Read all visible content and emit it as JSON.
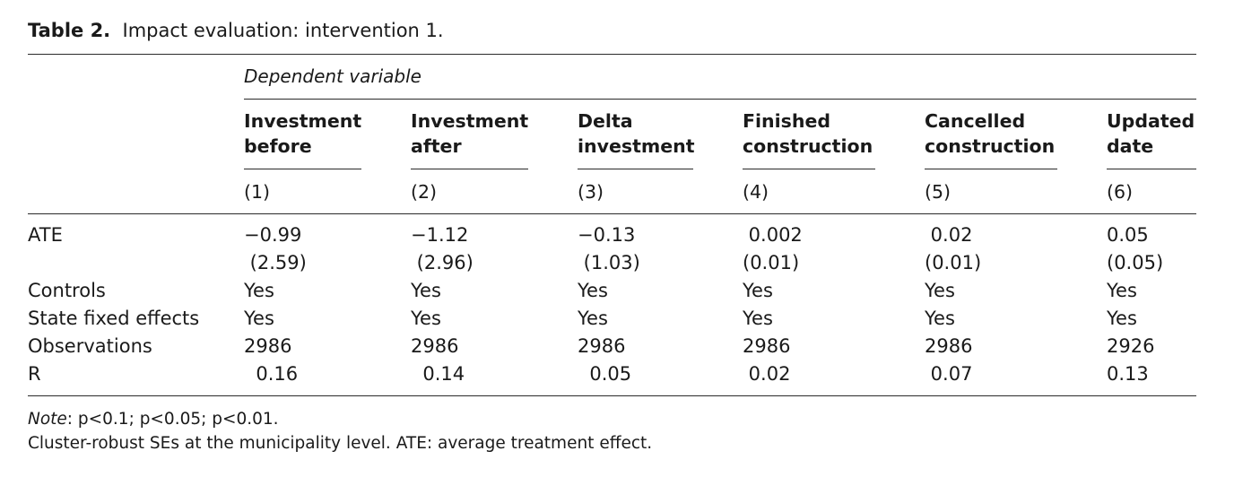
{
  "table": {
    "label": "Table 2.",
    "caption": "Impact evaluation: intervention 1.",
    "dependent_label": "Dependent variable",
    "columns": [
      {
        "line1": "Investment",
        "line2": "before",
        "num": "(1)"
      },
      {
        "line1": "Investment",
        "line2": "after",
        "num": "(2)"
      },
      {
        "line1": "Delta",
        "line2": "investment",
        "num": "(3)"
      },
      {
        "line1": "Finished",
        "line2": "construction",
        "num": "(4)"
      },
      {
        "line1": "Cancelled",
        "line2": "construction",
        "num": "(5)"
      },
      {
        "line1": "Updated",
        "line2": "date",
        "num": "(6)"
      }
    ],
    "rows": [
      {
        "label": "ATE",
        "values": [
          "−0.99",
          "−1.12",
          "−0.13",
          " 0.002",
          " 0.02",
          "0.05"
        ]
      },
      {
        "label": "",
        "values": [
          " (2.59)",
          " (2.96)",
          " (1.03)",
          "(0.01)",
          "(0.01)",
          "(0.05)"
        ]
      },
      {
        "label": "Controls",
        "values": [
          "Yes",
          "Yes",
          "Yes",
          "Yes",
          "Yes",
          "Yes"
        ]
      },
      {
        "label": "State fixed effects",
        "values": [
          "Yes",
          "Yes",
          "Yes",
          "Yes",
          "Yes",
          "Yes"
        ]
      },
      {
        "label": "Observations",
        "values": [
          "2986",
          "2986",
          "2986",
          "2986",
          "2986",
          "2926"
        ]
      },
      {
        "label": "R",
        "values": [
          "  0.16",
          "  0.14",
          "  0.05",
          " 0.02",
          " 0.07",
          "0.13"
        ]
      }
    ],
    "note_label": "Note",
    "note_text": ": p<0.1; p<0.05; p<0.01.",
    "footnote": "Cluster-robust SEs at the municipality level. ATE: average treatment effect."
  }
}
